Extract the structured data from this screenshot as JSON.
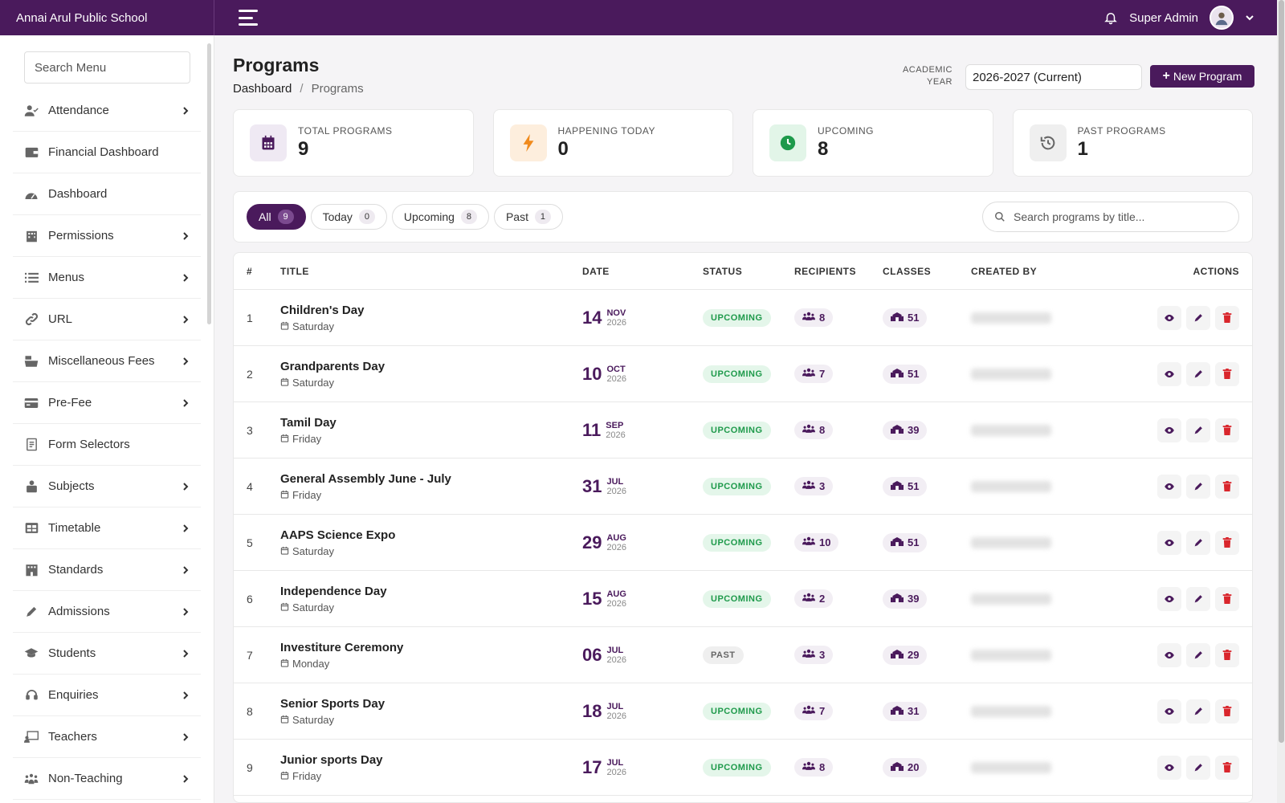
{
  "app": {
    "brand": "Annai Arul Public School",
    "user": "Super Admin"
  },
  "sidebar": {
    "search_placeholder": "Search Menu",
    "items": [
      {
        "label": "Attendance",
        "icon": "user-check-icon",
        "arrow": true
      },
      {
        "label": "Financial Dashboard",
        "icon": "wallet-icon",
        "arrow": false
      },
      {
        "label": "Dashboard",
        "icon": "gauge-icon",
        "arrow": false
      },
      {
        "label": "Permissions",
        "icon": "building-icon",
        "arrow": true
      },
      {
        "label": "Menus",
        "icon": "list-icon",
        "arrow": true
      },
      {
        "label": "URL",
        "icon": "link-icon",
        "arrow": true
      },
      {
        "label": "Miscellaneous Fees",
        "icon": "cash-register-icon",
        "arrow": true
      },
      {
        "label": "Pre-Fee",
        "icon": "credit-card-icon",
        "arrow": true
      },
      {
        "label": "Form Selectors",
        "icon": "form-icon",
        "arrow": false
      },
      {
        "label": "Subjects",
        "icon": "book-user-icon",
        "arrow": true
      },
      {
        "label": "Timetable",
        "icon": "table-icon",
        "arrow": true
      },
      {
        "label": "Standards",
        "icon": "school-building-icon",
        "arrow": true
      },
      {
        "label": "Admissions",
        "icon": "pen-icon",
        "arrow": true
      },
      {
        "label": "Students",
        "icon": "graduation-cap-icon",
        "arrow": true
      },
      {
        "label": "Enquiries",
        "icon": "headset-icon",
        "arrow": true
      },
      {
        "label": "Teachers",
        "icon": "chalkboard-teacher-icon",
        "arrow": true
      },
      {
        "label": "Non-Teaching",
        "icon": "people-group-icon",
        "arrow": true
      }
    ]
  },
  "header": {
    "title": "Programs",
    "breadcrumb": [
      "Dashboard",
      "Programs"
    ],
    "academic_year_label_1": "ACADEMIC",
    "academic_year_label_2": "YEAR",
    "academic_year_value": "2026-2027 (Current)",
    "new_button": "New Program"
  },
  "stats": [
    {
      "label": "TOTAL PROGRAMS",
      "value": "9",
      "icon": "calendar-icon",
      "bg": "#efe9f3",
      "fg": "#4a1a5c"
    },
    {
      "label": "HAPPENING TODAY",
      "value": "0",
      "icon": "bolt-icon",
      "bg": "#fdeedd",
      "fg": "#f08a1c"
    },
    {
      "label": "UPCOMING",
      "value": "8",
      "icon": "clock-icon",
      "bg": "#e2f5e8",
      "fg": "#1e9a4b"
    },
    {
      "label": "PAST PROGRAMS",
      "value": "1",
      "icon": "history-icon",
      "bg": "#efefef",
      "fg": "#666666"
    }
  ],
  "filters": {
    "tabs": [
      {
        "label": "All",
        "count": "9",
        "active": true
      },
      {
        "label": "Today",
        "count": "0",
        "active": false
      },
      {
        "label": "Upcoming",
        "count": "8",
        "active": false
      },
      {
        "label": "Past",
        "count": "1",
        "active": false
      }
    ],
    "search_placeholder": "Search programs by title..."
  },
  "table": {
    "columns": [
      "#",
      "TITLE",
      "DATE",
      "STATUS",
      "RECIPIENTS",
      "CLASSES",
      "CREATED BY",
      "ACTIONS"
    ],
    "rows": [
      {
        "num": "1",
        "title": "Children's Day",
        "day": "Saturday",
        "d": "14",
        "mon": "NOV",
        "yr": "2026",
        "status": "UPCOMING",
        "rec": "8",
        "cls": "51"
      },
      {
        "num": "2",
        "title": "Grandparents Day",
        "day": "Saturday",
        "d": "10",
        "mon": "OCT",
        "yr": "2026",
        "status": "UPCOMING",
        "rec": "7",
        "cls": "51"
      },
      {
        "num": "3",
        "title": "Tamil Day",
        "day": "Friday",
        "d": "11",
        "mon": "SEP",
        "yr": "2026",
        "status": "UPCOMING",
        "rec": "8",
        "cls": "39"
      },
      {
        "num": "4",
        "title": "General Assembly June - July",
        "day": "Friday",
        "d": "31",
        "mon": "JUL",
        "yr": "2026",
        "status": "UPCOMING",
        "rec": "3",
        "cls": "51"
      },
      {
        "num": "5",
        "title": "AAPS Science Expo",
        "day": "Saturday",
        "d": "29",
        "mon": "AUG",
        "yr": "2026",
        "status": "UPCOMING",
        "rec": "10",
        "cls": "51"
      },
      {
        "num": "6",
        "title": "Independence Day",
        "day": "Saturday",
        "d": "15",
        "mon": "AUG",
        "yr": "2026",
        "status": "UPCOMING",
        "rec": "2",
        "cls": "39"
      },
      {
        "num": "7",
        "title": "Investiture Ceremony",
        "day": "Monday",
        "d": "06",
        "mon": "JUL",
        "yr": "2026",
        "status": "PAST",
        "rec": "3",
        "cls": "29"
      },
      {
        "num": "8",
        "title": "Senior Sports Day",
        "day": "Saturday",
        "d": "18",
        "mon": "JUL",
        "yr": "2026",
        "status": "UPCOMING",
        "rec": "7",
        "cls": "31"
      },
      {
        "num": "9",
        "title": "Junior sports Day",
        "day": "Friday",
        "d": "17",
        "mon": "JUL",
        "yr": "2026",
        "status": "UPCOMING",
        "rec": "8",
        "cls": "20"
      }
    ]
  },
  "colors": {
    "brand": "#4a1a5c",
    "success": "#1e9a4b",
    "danger": "#d9262c"
  }
}
